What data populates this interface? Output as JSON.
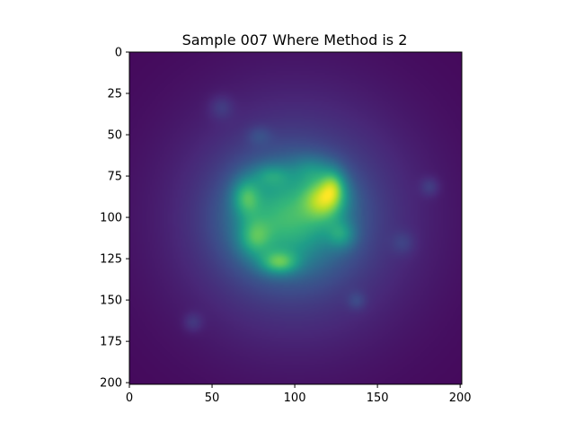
{
  "chart_data": {
    "type": "heatmap",
    "title": "Sample 007 Where Method is 2",
    "xlabel": "",
    "ylabel": "",
    "xlim": [
      0,
      201
    ],
    "ylim": [
      201,
      0
    ],
    "x_ticks": [
      0,
      50,
      100,
      150,
      200
    ],
    "y_ticks": [
      0,
      25,
      50,
      75,
      100,
      125,
      150,
      175,
      200
    ],
    "colormap": "viridis",
    "colormap_stops": [
      "#440154",
      "#482878",
      "#3e4a89",
      "#31688e",
      "#26828e",
      "#1f9e89",
      "#35b779",
      "#6ece58",
      "#b5de2b",
      "#fde725"
    ],
    "grid": false,
    "intensity_blobs": [
      {
        "x": 100,
        "y": 100,
        "sx": 52,
        "sy": 52,
        "amp": 0.22
      },
      {
        "x": 95,
        "y": 100,
        "sx": 24,
        "sy": 22,
        "amp": 0.45
      },
      {
        "x": 118,
        "y": 88,
        "sx": 9,
        "sy": 9,
        "amp": 0.45
      },
      {
        "x": 123,
        "y": 80,
        "sx": 5,
        "sy": 7,
        "amp": 0.25
      },
      {
        "x": 90,
        "y": 127,
        "sx": 8,
        "sy": 5,
        "amp": 0.35
      },
      {
        "x": 70,
        "y": 87,
        "sx": 6,
        "sy": 8,
        "amp": 0.3
      },
      {
        "x": 75,
        "y": 112,
        "sx": 7,
        "sy": 8,
        "amp": 0.25
      },
      {
        "x": 128,
        "y": 110,
        "sx": 6,
        "sy": 6,
        "amp": 0.22
      },
      {
        "x": 110,
        "y": 70,
        "sx": 9,
        "sy": 6,
        "amp": 0.15
      },
      {
        "x": 85,
        "y": 74,
        "sx": 8,
        "sy": 5,
        "amp": 0.18
      },
      {
        "x": 55,
        "y": 33,
        "sx": 5,
        "sy": 5,
        "amp": 0.09
      },
      {
        "x": 181,
        "y": 81,
        "sx": 4,
        "sy": 4,
        "amp": 0.1
      },
      {
        "x": 38,
        "y": 163,
        "sx": 4,
        "sy": 4,
        "amp": 0.09
      },
      {
        "x": 137,
        "y": 150,
        "sx": 4,
        "sy": 4,
        "amp": 0.09
      },
      {
        "x": 165,
        "y": 115,
        "sx": 5,
        "sy": 5,
        "amp": 0.08
      },
      {
        "x": 78,
        "y": 50,
        "sx": 5,
        "sy": 4,
        "amp": 0.08
      }
    ]
  }
}
